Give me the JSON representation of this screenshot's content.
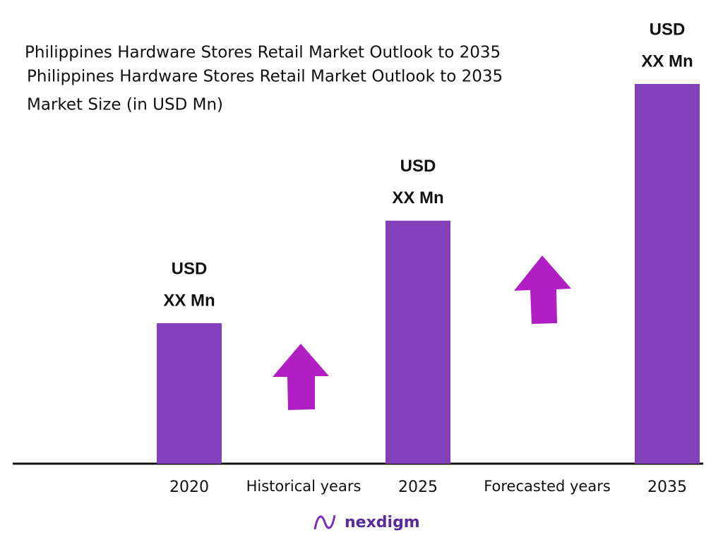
{
  "chart_data": {
    "type": "bar",
    "title": "Philippines Hardware Stores Retail Market Outlook to 2035",
    "title_repeat": "Philippines Hardware Stores Retail Market Outlook to 2035",
    "subtitle": "Market Size (in USD Mn)",
    "categories": [
      "2020",
      "2025",
      "2035"
    ],
    "values": [
      37,
      64,
      100
    ],
    "value_labels": [
      [
        "USD",
        "XX Mn"
      ],
      [
        "USD",
        "XX Mn"
      ],
      [
        "USD",
        "XX Mn"
      ]
    ],
    "color": "#8340bb",
    "ylim": [
      0,
      100
    ],
    "annotations": [
      "Historical years",
      "Forecasted years"
    ],
    "logo": "nexdigm"
  }
}
